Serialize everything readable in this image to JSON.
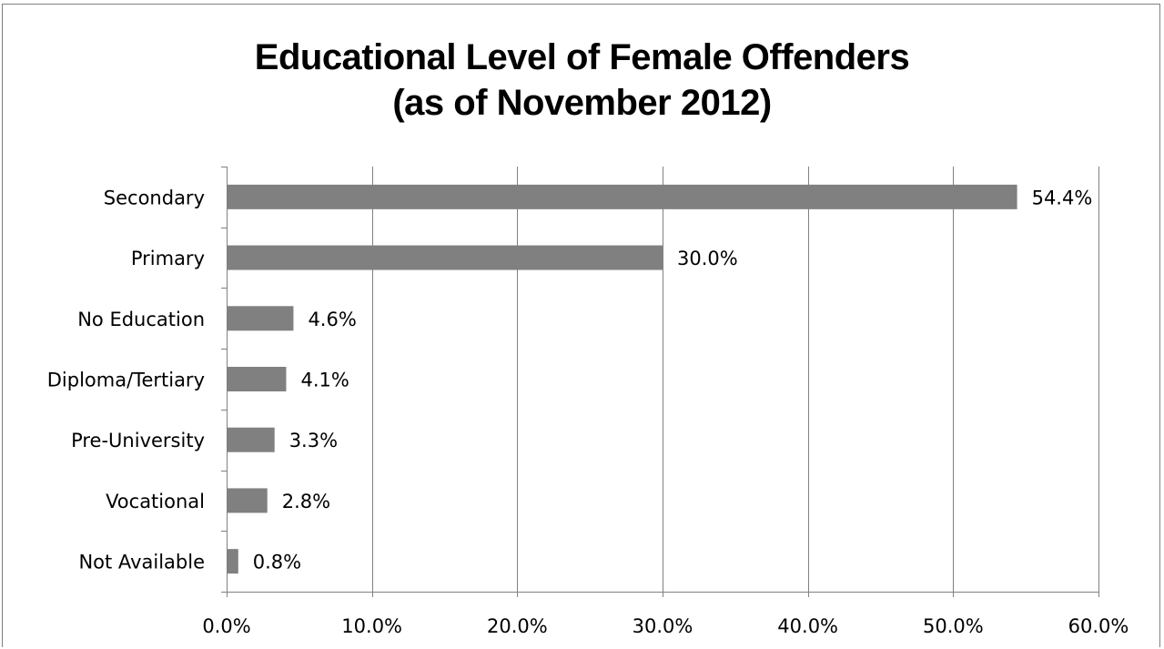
{
  "chart_data": {
    "type": "bar",
    "orientation": "horizontal",
    "title_lines": [
      "Educational Level of Female Offenders",
      "(as of November 2012)"
    ],
    "categories": [
      "Secondary",
      "Primary",
      "No Education",
      "Diploma/Tertiary",
      "Pre-University",
      "Vocational",
      "Not Available"
    ],
    "values": [
      54.4,
      30.0,
      4.6,
      4.1,
      3.3,
      2.8,
      0.8
    ],
    "data_labels": [
      "54.4%",
      "30.0%",
      "4.6%",
      "4.1%",
      "3.3%",
      "2.8%",
      "0.8%"
    ],
    "x_ticks": [
      0,
      10,
      20,
      30,
      40,
      50,
      60
    ],
    "x_tick_labels": [
      "0.0%",
      "10.0%",
      "20.0%",
      "30.0%",
      "40.0%",
      "50.0%",
      "60.0%"
    ],
    "xlim": [
      0,
      60
    ],
    "xlabel": "",
    "ylabel": "",
    "grid": "vertical",
    "legend": "none",
    "bar_color": "#808080",
    "grid_color": "#808080"
  }
}
